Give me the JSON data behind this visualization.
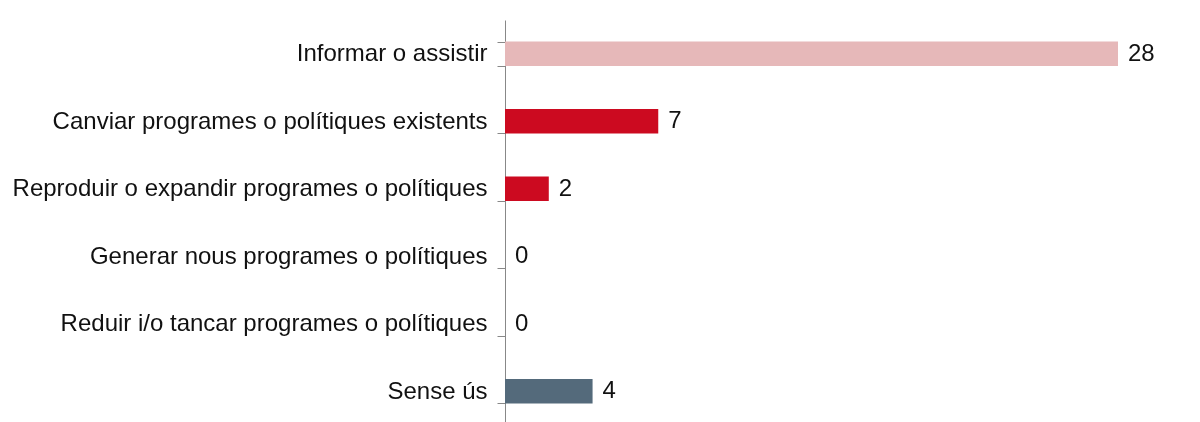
{
  "chart_data": {
    "type": "bar",
    "orientation": "horizontal",
    "categories": [
      "Informar o assistir",
      "Canviar programes o polítiques existents",
      "Reproduir o expandir programes o polítiques",
      "Generar nous programes o polítiques",
      "Reduir i/o tancar programes o polítiques",
      "Sense ús"
    ],
    "values": [
      28,
      7,
      2,
      0,
      0,
      4
    ],
    "colors": [
      "#e6b8b9",
      "#cc0a20",
      "#cc0a20",
      "#cc0a20",
      "#cc0a20",
      "#546a7b"
    ],
    "data_labels": true
  }
}
